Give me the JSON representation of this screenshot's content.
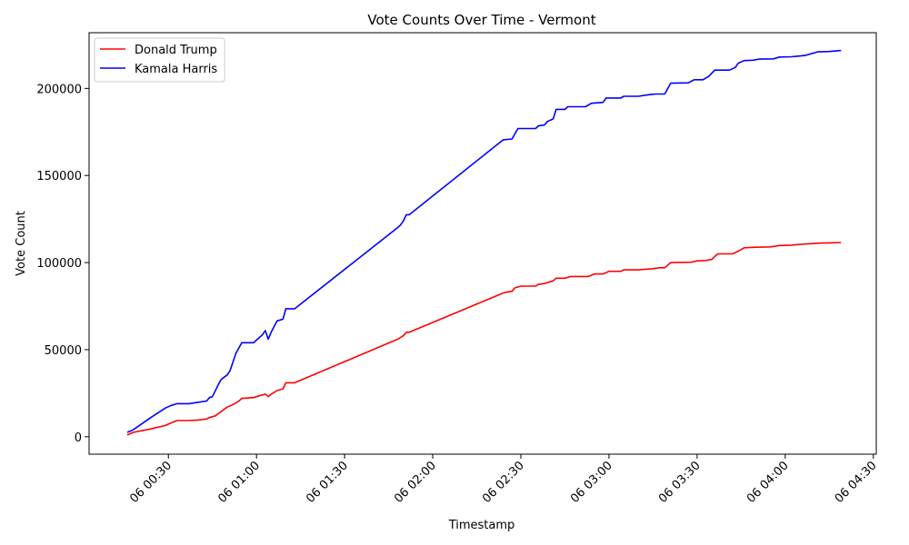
{
  "chart_data": {
    "type": "line",
    "title": "Vote Counts Over Time - Vermont",
    "xlabel": "Timestamp",
    "ylabel": "Vote Count",
    "xlim": [
      "00:03:00",
      "04:31:00"
    ],
    "ylim": [
      -10000,
      232000
    ],
    "x_ticks": [
      {
        "time": "00:30",
        "label": "06 00:30"
      },
      {
        "time": "01:00",
        "label": "06 01:00"
      },
      {
        "time": "01:30",
        "label": "06 01:30"
      },
      {
        "time": "02:00",
        "label": "06 02:00"
      },
      {
        "time": "02:30",
        "label": "06 02:30"
      },
      {
        "time": "03:00",
        "label": "06 03:00"
      },
      {
        "time": "03:30",
        "label": "06 03:30"
      },
      {
        "time": "04:00",
        "label": "06 04:00"
      },
      {
        "time": "04:30",
        "label": "06 04:30"
      }
    ],
    "y_ticks": [
      0,
      50000,
      100000,
      150000,
      200000
    ],
    "grid": false,
    "legend_position": "top-left",
    "series": [
      {
        "name": "Donald Trump",
        "color": "#ff0000",
        "points": [
          [
            "00:16",
            1000
          ],
          [
            "00:18",
            2500
          ],
          [
            "00:24",
            4500
          ],
          [
            "00:29",
            6500
          ],
          [
            "00:31",
            8000
          ],
          [
            "00:33",
            9300
          ],
          [
            "00:37",
            9300
          ],
          [
            "00:40",
            9600
          ],
          [
            "00:43",
            10200
          ],
          [
            "00:44",
            11000
          ],
          [
            "00:46",
            12000
          ],
          [
            "00:48",
            14500
          ],
          [
            "00:50",
            17000
          ],
          [
            "00:52",
            18500
          ],
          [
            "00:54",
            20500
          ],
          [
            "00:55",
            22000
          ],
          [
            "00:59",
            22500
          ],
          [
            "01:00",
            23000
          ],
          [
            "01:02",
            24000
          ],
          [
            "01:03",
            24500
          ],
          [
            "01:04",
            23000
          ],
          [
            "01:05",
            24500
          ],
          [
            "01:07",
            26500
          ],
          [
            "01:09",
            27500
          ],
          [
            "01:10",
            31000
          ],
          [
            "01:13",
            31000
          ],
          [
            "01:48",
            56000
          ],
          [
            "01:50",
            58000
          ],
          [
            "01:51",
            60000
          ],
          [
            "01:52",
            60000
          ],
          [
            "02:24",
            82500
          ],
          [
            "02:25",
            83000
          ],
          [
            "02:27",
            83500
          ],
          [
            "02:28",
            85500
          ],
          [
            "02:30",
            86500
          ],
          [
            "02:35",
            86500
          ],
          [
            "02:36",
            87500
          ],
          [
            "02:38",
            88000
          ],
          [
            "02:40",
            89000
          ],
          [
            "02:41",
            89500
          ],
          [
            "02:42",
            91000
          ],
          [
            "02:45",
            91000
          ],
          [
            "02:47",
            92000
          ],
          [
            "02:53",
            92000
          ],
          [
            "02:55",
            93500
          ],
          [
            "02:58",
            93500
          ],
          [
            "03:00",
            95000
          ],
          [
            "03:04",
            95000
          ],
          [
            "03:05",
            95800
          ],
          [
            "03:10",
            95800
          ],
          [
            "03:15",
            96500
          ],
          [
            "03:17",
            97000
          ],
          [
            "03:19",
            97000
          ],
          [
            "03:21",
            100000
          ],
          [
            "03:28",
            100200
          ],
          [
            "03:30",
            101000
          ],
          [
            "03:33",
            101200
          ],
          [
            "03:35",
            101800
          ],
          [
            "03:37",
            105000
          ],
          [
            "03:42",
            105000
          ],
          [
            "03:44",
            106500
          ],
          [
            "03:46",
            108500
          ],
          [
            "03:50",
            108800
          ],
          [
            "03:55",
            109000
          ],
          [
            "03:58",
            109800
          ],
          [
            "04:02",
            110000
          ],
          [
            "04:05",
            110500
          ],
          [
            "04:08",
            110800
          ],
          [
            "04:12",
            111200
          ],
          [
            "04:15",
            111300
          ],
          [
            "04:19",
            111500
          ]
        ]
      },
      {
        "name": "Kamala Harris",
        "color": "#0000ff",
        "points": [
          [
            "00:16",
            2500
          ],
          [
            "00:18",
            4000
          ],
          [
            "00:24",
            11000
          ],
          [
            "00:29",
            16500
          ],
          [
            "00:31",
            18000
          ],
          [
            "00:33",
            19000
          ],
          [
            "00:37",
            19000
          ],
          [
            "00:40",
            19800
          ],
          [
            "00:43",
            20500
          ],
          [
            "00:44",
            22500
          ],
          [
            "00:45",
            23000
          ],
          [
            "00:47",
            30000
          ],
          [
            "00:48",
            33000
          ],
          [
            "00:50",
            35500
          ],
          [
            "00:51",
            38000
          ],
          [
            "00:53",
            48000
          ],
          [
            "00:55",
            54000
          ],
          [
            "00:59",
            54000
          ],
          [
            "01:00",
            55500
          ],
          [
            "01:02",
            58500
          ],
          [
            "01:03",
            61000
          ],
          [
            "01:04",
            56000
          ],
          [
            "01:05",
            60000
          ],
          [
            "01:07",
            66500
          ],
          [
            "01:09",
            67500
          ],
          [
            "01:10",
            73500
          ],
          [
            "01:13",
            73500
          ],
          [
            "01:48",
            120000
          ],
          [
            "01:49",
            121500
          ],
          [
            "01:50",
            124000
          ],
          [
            "01:51",
            127500
          ],
          [
            "01:52",
            127500
          ],
          [
            "02:24",
            170500
          ],
          [
            "02:27",
            171000
          ],
          [
            "02:28",
            174000
          ],
          [
            "02:29",
            177000
          ],
          [
            "02:35",
            177000
          ],
          [
            "02:36",
            178500
          ],
          [
            "02:38",
            179000
          ],
          [
            "02:39",
            181000
          ],
          [
            "02:41",
            182500
          ],
          [
            "02:42",
            188000
          ],
          [
            "02:45",
            188000
          ],
          [
            "02:46",
            189500
          ],
          [
            "02:52",
            189500
          ],
          [
            "02:54",
            191500
          ],
          [
            "02:58",
            192000
          ],
          [
            "02:59",
            194500
          ],
          [
            "03:04",
            194500
          ],
          [
            "03:05",
            195500
          ],
          [
            "03:10",
            195500
          ],
          [
            "03:14",
            196500
          ],
          [
            "03:16",
            196800
          ],
          [
            "03:19",
            196800
          ],
          [
            "03:21",
            203000
          ],
          [
            "03:27",
            203200
          ],
          [
            "03:29",
            205000
          ],
          [
            "03:32",
            205000
          ],
          [
            "03:34",
            207000
          ],
          [
            "03:36",
            210500
          ],
          [
            "03:41",
            210500
          ],
          [
            "03:43",
            212000
          ],
          [
            "03:44",
            214500
          ],
          [
            "03:46",
            216000
          ],
          [
            "03:49",
            216200
          ],
          [
            "03:51",
            216800
          ],
          [
            "03:56",
            217000
          ],
          [
            "03:58",
            218000
          ],
          [
            "04:02",
            218200
          ],
          [
            "04:04",
            218500
          ],
          [
            "04:07",
            219000
          ],
          [
            "04:11",
            221000
          ],
          [
            "04:15",
            221200
          ],
          [
            "04:19",
            221800
          ]
        ]
      }
    ]
  }
}
